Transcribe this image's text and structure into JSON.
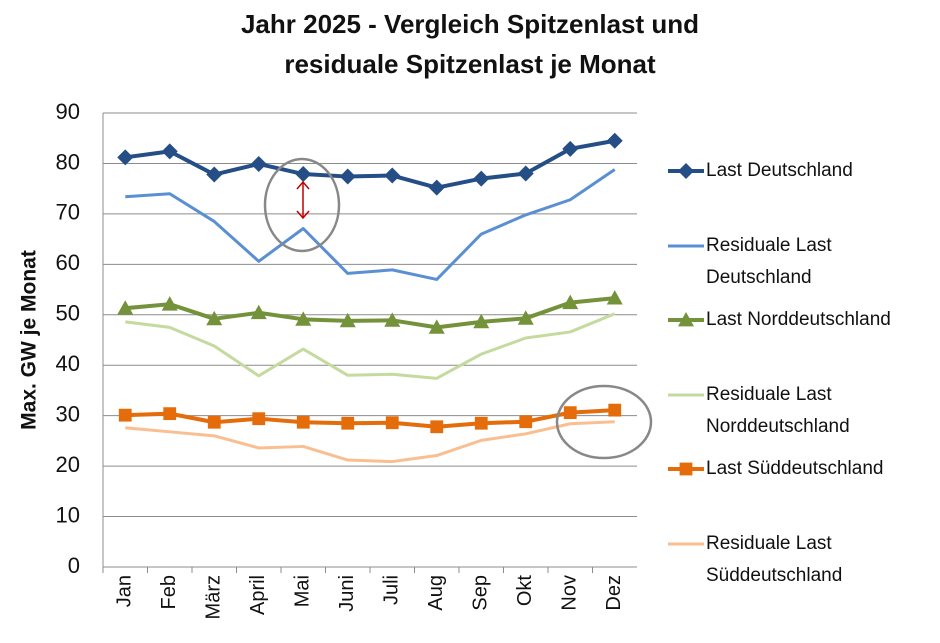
{
  "chart_data": {
    "type": "line",
    "title": "Jahr 2025 - Vergleich Spitzenlast und residuale Spitzenlast je Monat",
    "y_label": "Max. GW je Monat",
    "categories": [
      "Jan",
      "Feb",
      "März",
      "April",
      "Mai",
      "Juni",
      "Juli",
      "Aug",
      "Sep",
      "Okt",
      "Nov",
      "Dez"
    ],
    "ylim": [
      0,
      90
    ],
    "yticks": [
      0,
      10,
      20,
      30,
      40,
      50,
      60,
      70,
      80,
      90
    ],
    "grid": true,
    "legend": "right",
    "series": [
      {
        "name": "Last Deutschland",
        "color": "#254e87",
        "marker": "diamond",
        "values": [
          81.2,
          82.4,
          77.8,
          79.9,
          77.9,
          77.4,
          77.6,
          75.2,
          77.0,
          78.0,
          82.9,
          84.5
        ]
      },
      {
        "name": "Residuale Last Deutschland",
        "color": "#5a8fd4",
        "marker": "none",
        "values": [
          73.4,
          74.0,
          68.5,
          60.6,
          67.1,
          58.2,
          58.9,
          57.0,
          66.0,
          69.8,
          72.8,
          78.8
        ]
      },
      {
        "name": "Last Norddeutschland",
        "color": "#74923a",
        "marker": "triangle",
        "values": [
          51.3,
          52.1,
          49.2,
          50.4,
          49.1,
          48.8,
          48.9,
          47.5,
          48.6,
          49.3,
          52.4,
          53.3
        ]
      },
      {
        "name": "Residuale Last Norddeutschland",
        "color": "#c5da9e",
        "marker": "none",
        "values": [
          48.6,
          47.5,
          43.8,
          37.9,
          43.2,
          38.0,
          38.2,
          37.4,
          42.2,
          45.4,
          46.6,
          50.2
        ]
      },
      {
        "name": "Last Süddeutschland",
        "color": "#e46c0a",
        "marker": "square",
        "values": [
          30.1,
          30.4,
          28.7,
          29.4,
          28.7,
          28.5,
          28.6,
          27.8,
          28.5,
          28.8,
          30.6,
          31.1
        ]
      },
      {
        "name": "Residuale Last Süddeutschland",
        "color": "#f9bf90",
        "marker": "none",
        "values": [
          27.6,
          26.8,
          26.0,
          23.6,
          23.9,
          21.2,
          20.9,
          22.1,
          25.1,
          26.4,
          28.4,
          28.8
        ]
      }
    ]
  }
}
